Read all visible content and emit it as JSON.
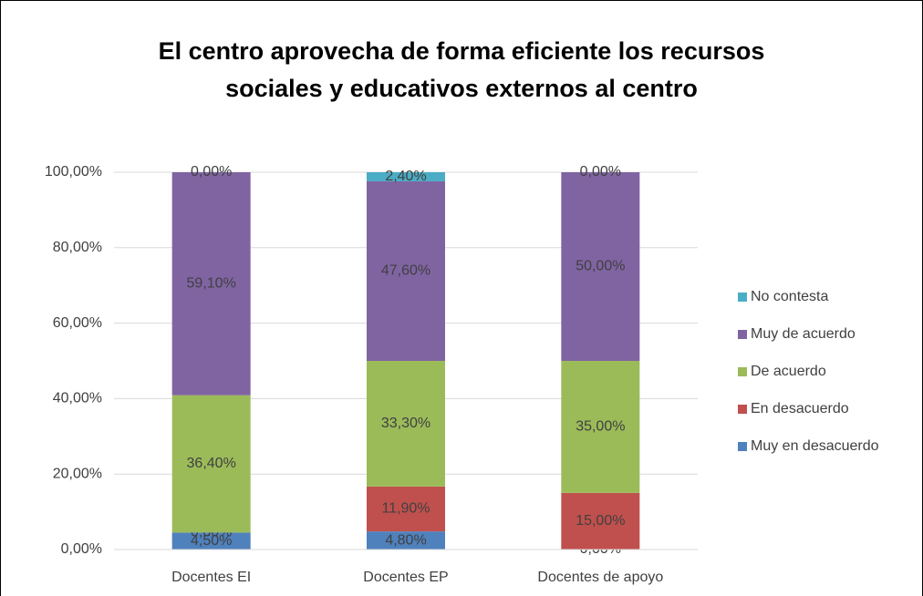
{
  "chart_data": {
    "type": "stacked_bar",
    "title": [
      "El centro aprovecha de forma eficiente los recursos",
      "sociales y educativos externos al centro"
    ],
    "categories": [
      "Docentes EI",
      "Docentes EP",
      "Docentes de apoyo"
    ],
    "series": [
      {
        "name": "Muy en desacuerdo",
        "color": "#4f81bd",
        "values": [
          4.5,
          4.8,
          0
        ],
        "value_labels": [
          "4,50%",
          "4,80%",
          "0,00%"
        ]
      },
      {
        "name": "En desacuerdo",
        "color": "#c0504d",
        "values": [
          0,
          11.9,
          15
        ],
        "value_labels": [
          "0,00%",
          "11,90%",
          "15,00%"
        ]
      },
      {
        "name": "De acuerdo",
        "color": "#9bbb59",
        "values": [
          36.4,
          33.3,
          35
        ],
        "value_labels": [
          "36,40%",
          "33,30%",
          "35,00%"
        ]
      },
      {
        "name": "Muy de acuerdo",
        "color": "#8064a2",
        "values": [
          59.1,
          47.6,
          50
        ],
        "value_labels": [
          "59,10%",
          "47,60%",
          "50,00%"
        ]
      },
      {
        "name": "No contesta",
        "color": "#4bacc6",
        "values": [
          0,
          2.4,
          0
        ],
        "value_labels": [
          "0,00%",
          "2,40%",
          "0,00%"
        ]
      }
    ],
    "ylim": [
      0,
      100
    ],
    "yticks": [
      {
        "value": 0,
        "label": "0,00%"
      },
      {
        "value": 20,
        "label": "20,00%"
      },
      {
        "value": 40,
        "label": "40,00%"
      },
      {
        "value": 60,
        "label": "60,00%"
      },
      {
        "value": 80,
        "label": "80,00%"
      },
      {
        "value": 100,
        "label": "100,00%"
      }
    ],
    "grid": true,
    "legend": "right"
  }
}
